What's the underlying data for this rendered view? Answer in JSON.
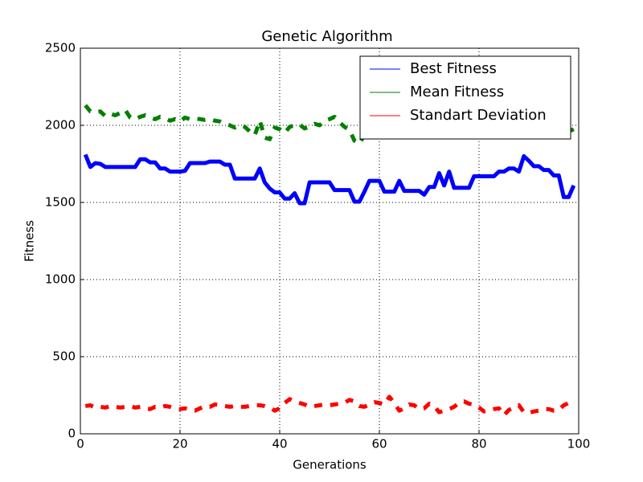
{
  "chart_data": {
    "type": "line",
    "title": "Genetic Algorithm",
    "x_label": "Generations",
    "y_label": "Fitness",
    "x": [
      1,
      2,
      3,
      4,
      5,
      6,
      7,
      8,
      9,
      10,
      11,
      12,
      13,
      14,
      15,
      16,
      17,
      18,
      19,
      20,
      21,
      22,
      23,
      24,
      25,
      26,
      27,
      28,
      29,
      30,
      31,
      32,
      33,
      34,
      35,
      36,
      37,
      38,
      39,
      40,
      41,
      42,
      43,
      44,
      45,
      46,
      47,
      48,
      49,
      50,
      51,
      52,
      53,
      54,
      55,
      56,
      57,
      58,
      59,
      60,
      61,
      62,
      63,
      64,
      65,
      66,
      67,
      68,
      69,
      70,
      71,
      72,
      73,
      74,
      75,
      76,
      77,
      78,
      79,
      80,
      81,
      82,
      83,
      84,
      85,
      86,
      87,
      88,
      89,
      90,
      91,
      92,
      93,
      94,
      95,
      96,
      97,
      98,
      99
    ],
    "series": [
      {
        "name": "Best Fitness",
        "color": "#0000ff",
        "linestyle": "solid",
        "values": [
          1810,
          1730,
          1755,
          1750,
          1730,
          1730,
          1730,
          1730,
          1730,
          1730,
          1730,
          1780,
          1780,
          1760,
          1760,
          1720,
          1720,
          1700,
          1700,
          1700,
          1705,
          1755,
          1755,
          1755,
          1755,
          1765,
          1765,
          1765,
          1745,
          1745,
          1655,
          1655,
          1655,
          1655,
          1655,
          1720,
          1630,
          1590,
          1565,
          1565,
          1525,
          1525,
          1560,
          1495,
          1495,
          1630,
          1630,
          1630,
          1630,
          1630,
          1580,
          1580,
          1580,
          1580,
          1505,
          1505,
          1570,
          1640,
          1640,
          1640,
          1570,
          1570,
          1570,
          1640,
          1575,
          1575,
          1575,
          1575,
          1550,
          1600,
          1600,
          1690,
          1610,
          1700,
          1595,
          1595,
          1595,
          1595,
          1670,
          1670,
          1670,
          1670,
          1670,
          1700,
          1700,
          1720,
          1720,
          1700,
          1800,
          1770,
          1735,
          1735,
          1710,
          1710,
          1675,
          1675,
          1535,
          1535,
          1610
        ]
      },
      {
        "name": "Mean Fitness",
        "color": "#008000",
        "linestyle": "dashed",
        "values": [
          2130,
          2090,
          2085,
          2090,
          2060,
          2075,
          2065,
          2080,
          2100,
          2050,
          2040,
          2055,
          2065,
          2050,
          2040,
          2055,
          2045,
          2030,
          2040,
          2025,
          2050,
          2040,
          2045,
          2040,
          2035,
          2040,
          2030,
          2025,
          2010,
          2000,
          1985,
          2000,
          1990,
          1960,
          1935,
          2030,
          1920,
          1910,
          1985,
          1975,
          1950,
          1990,
          2000,
          2005,
          1980,
          1990,
          2010,
          2000,
          2030,
          2040,
          2055,
          2020,
          1990,
          1970,
          1900,
          1880,
          1940,
          1960,
          1975,
          1990,
          1980,
          1995,
          1970,
          1985,
          1990,
          1960,
          1975,
          1980,
          1965,
          1950,
          1960,
          1930,
          1960,
          1975,
          1985,
          1970,
          1990,
          1980,
          1965,
          1970,
          1985,
          1975,
          1960,
          1990,
          1970,
          1975,
          1980,
          1965,
          1960,
          1950,
          1940,
          1910,
          1960,
          1945,
          1940,
          1955,
          1970,
          1960,
          1975
        ]
      },
      {
        "name": "Standart Deviation",
        "color": "#ff0000",
        "linestyle": "dashed",
        "values": [
          180,
          185,
          170,
          175,
          170,
          180,
          175,
          170,
          175,
          180,
          170,
          175,
          165,
          160,
          175,
          170,
          180,
          175,
          165,
          160,
          165,
          155,
          150,
          165,
          180,
          175,
          190,
          185,
          180,
          175,
          180,
          175,
          175,
          180,
          185,
          185,
          180,
          170,
          150,
          165,
          200,
          225,
          210,
          200,
          190,
          175,
          180,
          185,
          190,
          185,
          190,
          195,
          200,
          220,
          210,
          180,
          175,
          190,
          205,
          200,
          190,
          240,
          200,
          150,
          165,
          190,
          185,
          160,
          165,
          195,
          180,
          140,
          150,
          160,
          175,
          200,
          210,
          195,
          190,
          170,
          145,
          150,
          160,
          165,
          120,
          155,
          170,
          185,
          140,
          135,
          145,
          150,
          160,
          160,
          150,
          155,
          185,
          200,
          175
        ]
      }
    ],
    "xlim": [
      0,
      100
    ],
    "xticks": [
      0,
      20,
      40,
      60,
      80,
      100
    ],
    "ylim": [
      0,
      2500
    ],
    "yticks": [
      0,
      500,
      1000,
      1500,
      2000,
      2500
    ],
    "grid": true,
    "legend": "upper right"
  }
}
